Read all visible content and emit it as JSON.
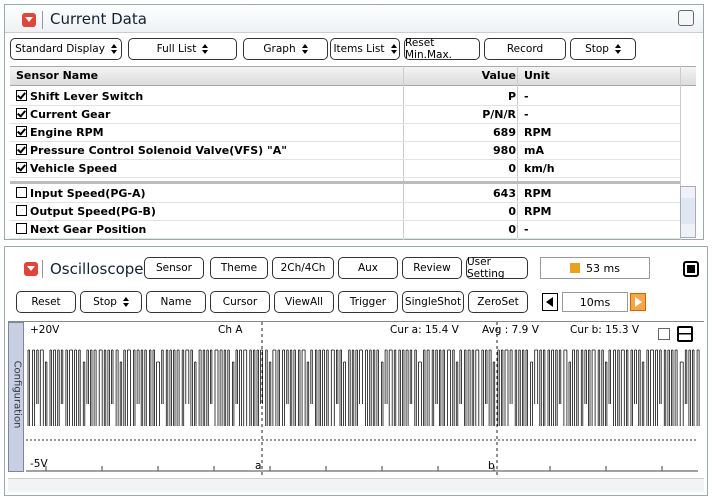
{
  "current_data": {
    "title": "Current Data",
    "toolbar": [
      {
        "label": "Standard Display",
        "dropdown": true
      },
      {
        "label": "Full List",
        "dropdown": true
      },
      {
        "label": "Graph",
        "dropdown": true
      },
      {
        "label": "Items List",
        "dropdown": true
      },
      {
        "label": "Reset Min.Max.",
        "dropdown": false
      },
      {
        "label": "Record",
        "dropdown": false
      },
      {
        "label": "Stop",
        "dropdown": true
      }
    ],
    "columns": [
      "Sensor Name",
      "Value",
      "Unit"
    ],
    "rows": [
      {
        "name": "Shift Lever Switch",
        "value": "P",
        "unit": "-",
        "checked": true
      },
      {
        "name": "Current Gear",
        "value": "P/N/R",
        "unit": "-",
        "checked": true
      },
      {
        "name": "Engine RPM",
        "value": 689,
        "unit": "RPM",
        "checked": true
      },
      {
        "name": "Pressure Control Solenoid Valve(VFS) \"A\"",
        "value": 980,
        "unit": "mA",
        "checked": true
      },
      {
        "name": "Vehicle Speed",
        "value": 0,
        "unit": "km/h",
        "checked": true
      },
      {
        "name": "Input Speed(PG-A)",
        "value": 643,
        "unit": "RPM",
        "checked": false
      },
      {
        "name": "Output Speed(PG-B)",
        "value": 0,
        "unit": "RPM",
        "checked": false
      },
      {
        "name": "Next Gear Position",
        "value": 0,
        "unit": "-",
        "checked": false
      }
    ]
  },
  "oscilloscope": {
    "title": "Oscilloscope",
    "buttons_row1": [
      "Sensor",
      "Theme",
      "2Ch/4Ch",
      "Aux",
      "Review",
      "User Setting"
    ],
    "time": "53 ms",
    "buttons_row2": [
      {
        "label": "Reset",
        "dropdown": false
      },
      {
        "label": "Stop",
        "dropdown": true
      },
      {
        "label": "Name",
        "dropdown": false
      },
      {
        "label": "Cursor",
        "dropdown": false
      },
      {
        "label": "ViewAll",
        "dropdown": false
      },
      {
        "label": "Trigger",
        "dropdown": false
      },
      {
        "label": "SingleShot",
        "dropdown": false
      },
      {
        "label": "ZeroSet",
        "dropdown": false
      }
    ],
    "timebase": "10ms",
    "side_tab": "Configuration",
    "display": {
      "top_label": "+20V",
      "channel": "Ch A",
      "cur_a": "Cur a: 15.4 V",
      "avg": "Avg : 7.9 V",
      "cur_b": "Cur b: 15.3 V",
      "bottom_label": "-5V",
      "cursor_a": "a",
      "cursor_b": "b"
    }
  }
}
